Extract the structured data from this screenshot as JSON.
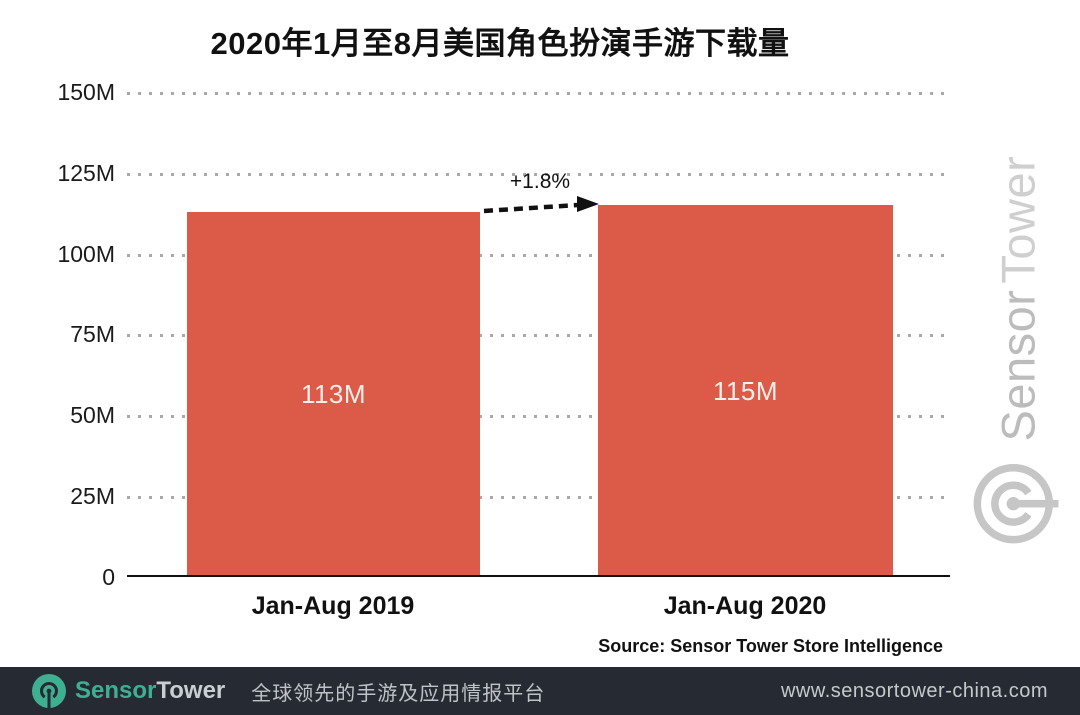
{
  "title": "2020年1月至8月美国角色扮演手游下载量",
  "chart_data": {
    "type": "bar",
    "categories": [
      "Jan-Aug 2019",
      "Jan-Aug 2020"
    ],
    "values": [
      113,
      115
    ],
    "value_labels": [
      "113M",
      "115M"
    ],
    "unit": "M downloads",
    "ylim": [
      0,
      150
    ],
    "yticks": [
      "150M",
      "125M",
      "100M",
      "75M",
      "50M",
      "25M",
      "0"
    ],
    "ytick_values": [
      150,
      125,
      100,
      75,
      50,
      25,
      0
    ],
    "annotation": "+1.8%",
    "grid": "horizontal dotted",
    "legend": "none",
    "bar_color": "#dc5a48",
    "source": "Source: Sensor Tower Store Intelligence"
  },
  "watermark": {
    "brand_part1": "Sensor",
    "brand_part2": "Tower"
  },
  "footer": {
    "brand_part1": "Sensor",
    "brand_part2": "Tower",
    "tagline": "全球领先的手游及应用情报平台",
    "website": "www.sensortower-china.com"
  },
  "colors": {
    "bar": "#dc5a48",
    "footer_background": "#262b33",
    "brand_teal": "#3faf92",
    "watermark_gray": "#c6c6c6",
    "gridline_gray": "#a9a9a9"
  }
}
